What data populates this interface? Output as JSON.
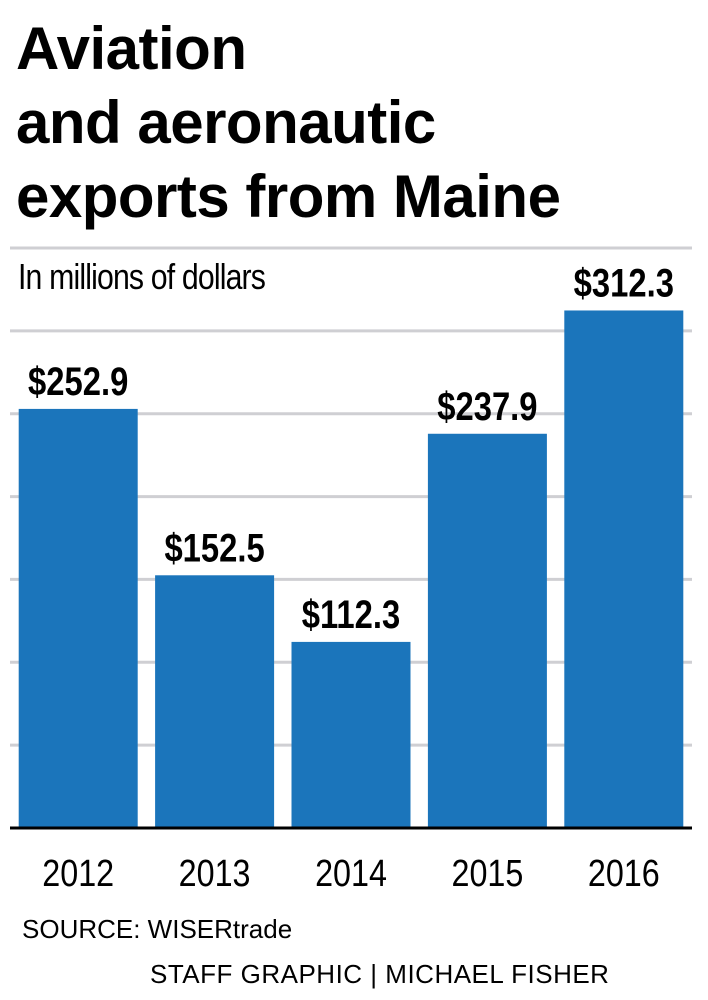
{
  "chart_data": {
    "type": "bar",
    "title_lines": [
      "Aviation",
      "and aeronautic",
      "exports from Maine"
    ],
    "subtitle": "In millions of dollars",
    "categories": [
      "2012",
      "2013",
      "2014",
      "2015",
      "2016"
    ],
    "values": [
      252.9,
      152.5,
      112.3,
      237.9,
      312.3
    ],
    "data_labels": [
      "$252.9",
      "$152.5",
      "$112.3",
      "$237.9",
      "$312.3"
    ],
    "ylim": [
      0,
      350
    ],
    "grid": true,
    "bar_color": "#1b75bb",
    "grid_color": "#cfcfd3"
  },
  "source": "SOURCE: WISERtrade",
  "credit": "STAFF GRAPHIC | MICHAEL FISHER"
}
